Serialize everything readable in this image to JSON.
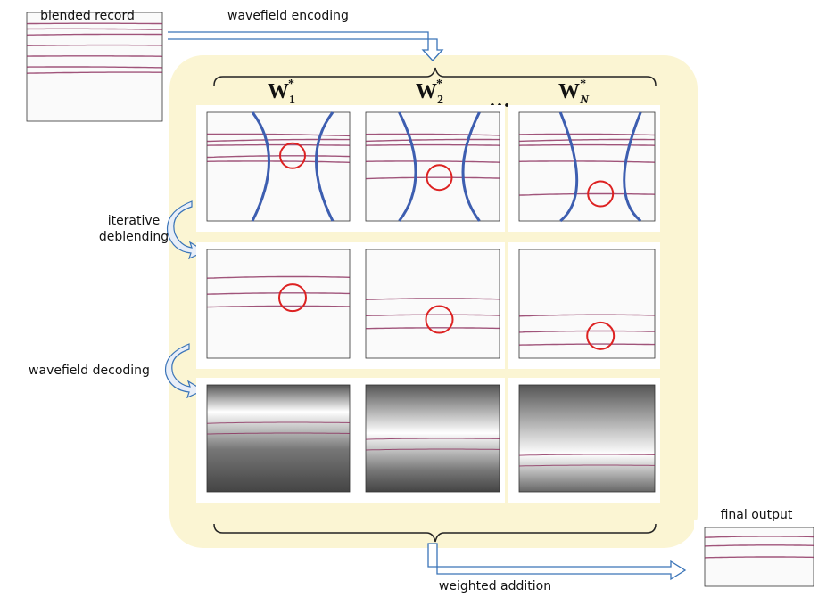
{
  "labels": {
    "blended_record": "blended record",
    "wavefield_encoding": "wavefield encoding",
    "iterative_deblending": [
      "iterative",
      "deblending"
    ],
    "wavefield_decoding": "wavefield decoding",
    "final_output": "final output",
    "weighted_addition": "weighted addition"
  },
  "weights": [
    {
      "base": "W",
      "sub": "1",
      "sup": "*"
    },
    {
      "base": "W",
      "sub": "2",
      "sup": "*"
    },
    {
      "base": "W",
      "sub": "N",
      "sup": "*"
    }
  ],
  "ellipsis": "…"
}
